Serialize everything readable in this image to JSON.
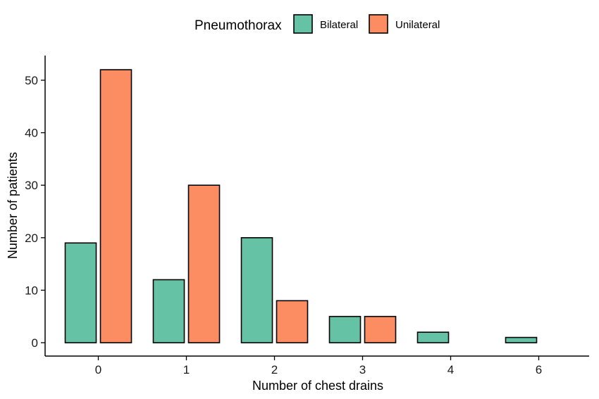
{
  "chart_data": {
    "type": "bar",
    "categories": [
      "0",
      "1",
      "2",
      "3",
      "4",
      "6"
    ],
    "series": [
      {
        "name": "Bilateral",
        "values": [
          19,
          12,
          20,
          5,
          2,
          1
        ],
        "color": "#66c2a5"
      },
      {
        "name": "Unilateral",
        "values": [
          52,
          30,
          8,
          5,
          0,
          0
        ],
        "color": "#fc8d62"
      }
    ],
    "xlabel": "Number of chest drains",
    "ylabel": "Number of patients",
    "ylim": [
      0,
      54
    ],
    "yticks": [
      0,
      10,
      20,
      30,
      40,
      50
    ],
    "legend": {
      "title": "Pneumothorax",
      "position": "top"
    },
    "grid": false
  }
}
